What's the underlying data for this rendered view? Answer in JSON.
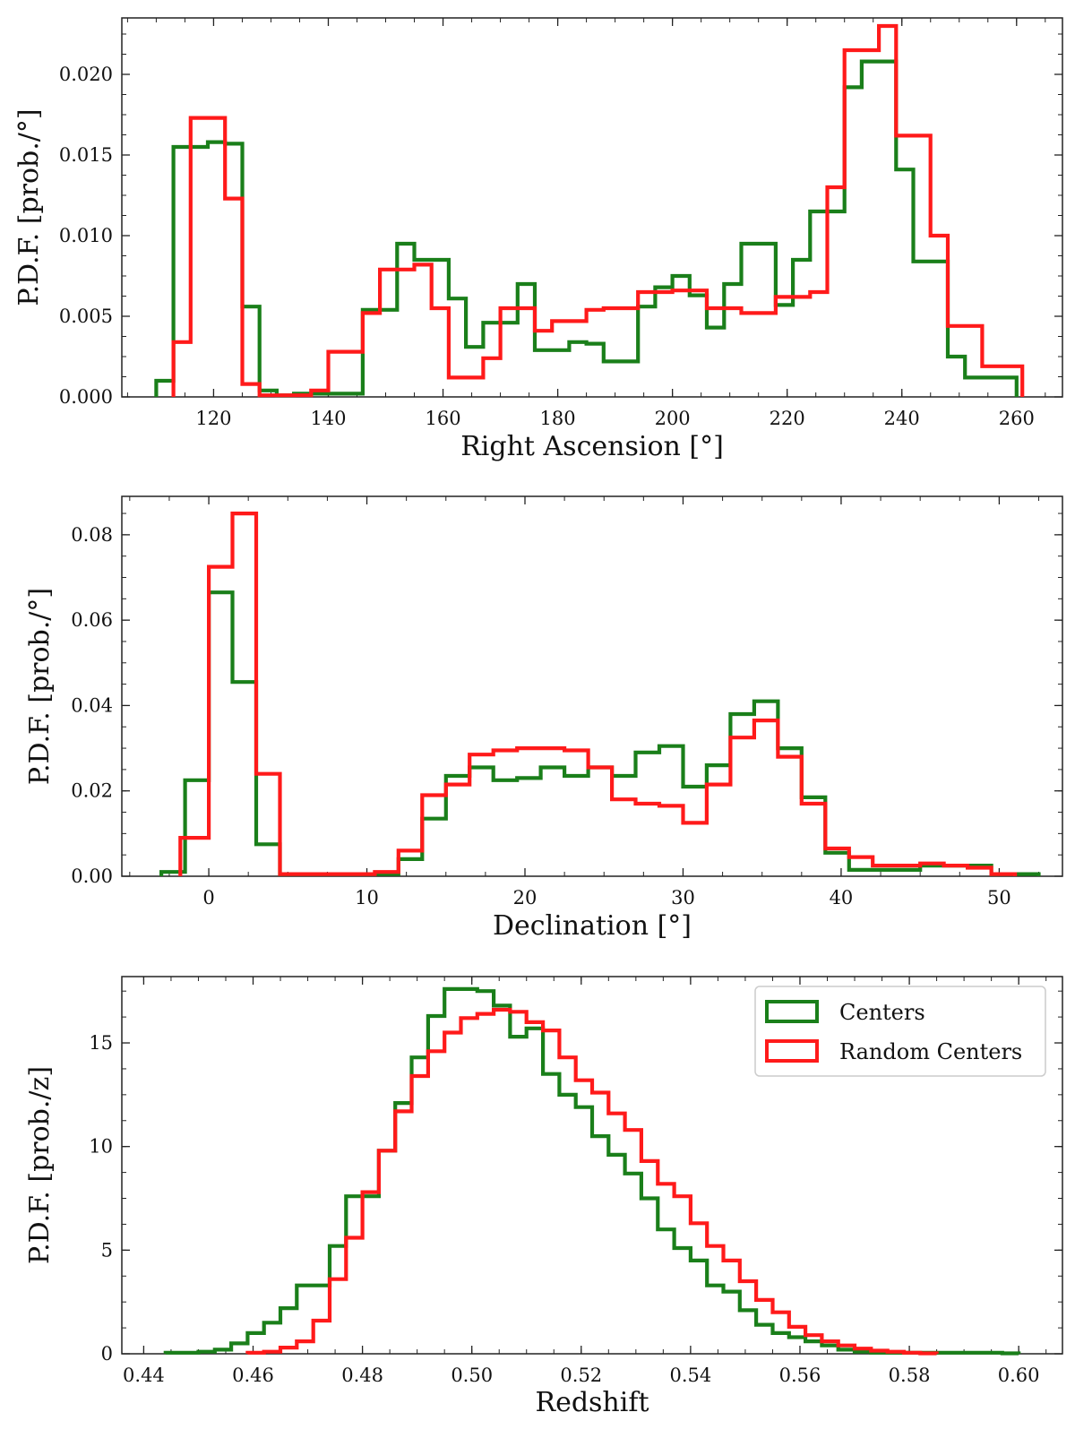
{
  "colors": {
    "centers": "#1a7f1a",
    "random": "#ff1a1a"
  },
  "chart_data": [
    {
      "type": "histogram-step",
      "title": "",
      "xlabel": "Right Ascension [°]",
      "ylabel": "P.D.F. [prob./°]",
      "xlim": [
        104,
        268
      ],
      "ylim": [
        0,
        0.0235
      ],
      "xticks": [
        120,
        140,
        160,
        180,
        200,
        220,
        240,
        260
      ],
      "xtick_labels": [
        "120",
        "140",
        "160",
        "180",
        "200",
        "220",
        "240",
        "260"
      ],
      "yticks": [
        0,
        0.005,
        0.01,
        0.015,
        0.02
      ],
      "ytick_labels": [
        "0.000",
        "0.005",
        "0.010",
        "0.015",
        "0.020"
      ],
      "series": [
        {
          "name": "Centers",
          "edges": [
            110,
            113,
            116,
            119,
            122,
            125,
            128,
            131,
            134,
            137,
            140,
            143,
            146,
            149,
            152,
            155,
            158,
            161,
            164,
            167,
            170,
            173,
            176,
            179,
            182,
            185,
            188,
            191,
            194,
            197,
            200,
            203,
            206,
            209,
            212,
            215,
            218,
            221,
            224,
            227,
            230,
            233,
            236,
            239,
            242,
            245,
            248,
            251,
            254,
            257,
            260
          ],
          "values": [
            0.001,
            0.0155,
            0.0155,
            0.0158,
            0.0157,
            0.0056,
            0.0004,
            0.0001,
            0.0002,
            0.0002,
            0.0002,
            0.0002,
            0.0054,
            0.0054,
            0.0095,
            0.0085,
            0.0085,
            0.0061,
            0.0031,
            0.0046,
            0.0046,
            0.007,
            0.0029,
            0.0029,
            0.0034,
            0.0033,
            0.0022,
            0.0022,
            0.0056,
            0.0068,
            0.0075,
            0.0063,
            0.0043,
            0.007,
            0.0095,
            0.0095,
            0.0057,
            0.0085,
            0.0115,
            0.0115,
            0.0192,
            0.0208,
            0.0208,
            0.0141,
            0.0084,
            0.0084,
            0.0025,
            0.0012,
            0.0012,
            0.0012
          ]
        },
        {
          "name": "Random Centers",
          "edges": [
            113,
            116,
            119,
            122,
            125,
            128,
            131,
            134,
            137,
            140,
            143,
            146,
            149,
            152,
            155,
            158,
            161,
            164,
            167,
            170,
            173,
            176,
            179,
            182,
            185,
            188,
            191,
            194,
            197,
            200,
            203,
            206,
            209,
            212,
            215,
            218,
            221,
            224,
            227,
            230,
            233,
            236,
            239,
            242,
            245,
            248,
            251,
            254,
            257,
            260,
            261
          ],
          "values": [
            0.0034,
            0.0173,
            0.0173,
            0.0123,
            0.0008,
            0.0001,
            0.0001,
            0.0001,
            0.0004,
            0.0028,
            0.0028,
            0.0052,
            0.0079,
            0.0079,
            0.0082,
            0.0055,
            0.0012,
            0.0012,
            0.0024,
            0.0055,
            0.0055,
            0.0041,
            0.0047,
            0.0047,
            0.0054,
            0.0055,
            0.0055,
            0.0065,
            0.0065,
            0.0066,
            0.0066,
            0.0055,
            0.0055,
            0.0052,
            0.0052,
            0.0062,
            0.0062,
            0.0065,
            0.013,
            0.0215,
            0.0215,
            0.023,
            0.0162,
            0.0162,
            0.01,
            0.0044,
            0.0044,
            0.0019,
            0.0019,
            0.0019
          ]
        }
      ]
    },
    {
      "type": "histogram-step",
      "title": "",
      "xlabel": "Declination [°]",
      "ylabel": "P.D.F. [prob./°]",
      "xlim": [
        -5.5,
        54
      ],
      "ylim": [
        0,
        0.089
      ],
      "xticks": [
        0,
        10,
        20,
        30,
        40,
        50
      ],
      "xtick_labels": [
        "0",
        "10",
        "20",
        "30",
        "40",
        "50"
      ],
      "yticks": [
        0,
        0.02,
        0.04,
        0.06,
        0.08
      ],
      "ytick_labels": [
        "0.00",
        "0.02",
        "0.04",
        "0.06",
        "0.08"
      ],
      "series": [
        {
          "name": "Centers",
          "edges": [
            -3.0,
            -1.5,
            0.0,
            1.5,
            3.0,
            4.5,
            6.0,
            7.5,
            9.0,
            10.5,
            12.0,
            13.5,
            15.0,
            16.5,
            18.0,
            19.5,
            21.0,
            22.5,
            24.0,
            25.5,
            27.0,
            28.5,
            30.0,
            31.5,
            33.0,
            34.5,
            36.0,
            37.5,
            39.0,
            40.5,
            42.0,
            43.5,
            45.0,
            46.5,
            48.0,
            49.5,
            51.0,
            52.5
          ],
          "values": [
            0.001,
            0.0225,
            0.0665,
            0.0455,
            0.0075,
            0.0005,
            0.0005,
            0.0005,
            0.0005,
            0.0005,
            0.004,
            0.0135,
            0.0235,
            0.0255,
            0.0225,
            0.023,
            0.0255,
            0.0235,
            0.0255,
            0.0235,
            0.029,
            0.0305,
            0.021,
            0.026,
            0.038,
            0.041,
            0.03,
            0.0185,
            0.0055,
            0.0015,
            0.0015,
            0.0015,
            0.0025,
            0.0025,
            0.0025,
            0.0005,
            0.0005
          ]
        },
        {
          "name": "Random Centers",
          "edges": [
            -1.8,
            0.0,
            1.5,
            3.0,
            4.5,
            6.0,
            7.5,
            9.0,
            10.5,
            12.0,
            13.5,
            15.0,
            16.5,
            18.0,
            19.5,
            21.0,
            22.5,
            24.0,
            25.5,
            27.0,
            28.5,
            30.0,
            31.5,
            33.0,
            34.5,
            36.0,
            37.5,
            39.0,
            40.5,
            42.0,
            43.5,
            45.0,
            46.5,
            48.0,
            49.5,
            51.0
          ],
          "values": [
            0.009,
            0.0725,
            0.085,
            0.024,
            0.0005,
            0.0005,
            0.0005,
            0.0005,
            0.001,
            0.006,
            0.019,
            0.0215,
            0.0285,
            0.0295,
            0.03,
            0.03,
            0.0295,
            0.0255,
            0.018,
            0.017,
            0.0165,
            0.0125,
            0.0215,
            0.0325,
            0.0365,
            0.028,
            0.017,
            0.0065,
            0.0045,
            0.0025,
            0.0025,
            0.003,
            0.0025,
            0.002,
            0.0005
          ]
        }
      ]
    },
    {
      "type": "histogram-step",
      "title": "",
      "xlabel": "Redshift",
      "ylabel": "P.D.F. [prob./z]",
      "xlim": [
        0.436,
        0.608
      ],
      "ylim": [
        0,
        18.2
      ],
      "xticks": [
        0.44,
        0.46,
        0.48,
        0.5,
        0.52,
        0.54,
        0.56,
        0.58,
        0.6
      ],
      "xtick_labels": [
        "0.44",
        "0.46",
        "0.48",
        "0.50",
        "0.52",
        "0.54",
        "0.56",
        "0.58",
        "0.60"
      ],
      "yticks": [
        0,
        5,
        10,
        15
      ],
      "ytick_labels": [
        "0",
        "5",
        "10",
        "15"
      ],
      "legend": {
        "location": "top-right",
        "entries": [
          "Centers",
          "Random Centers"
        ]
      },
      "series": [
        {
          "name": "Centers",
          "edges": [
            0.444,
            0.447,
            0.45,
            0.453,
            0.456,
            0.459,
            0.462,
            0.465,
            0.468,
            0.471,
            0.474,
            0.477,
            0.48,
            0.483,
            0.486,
            0.489,
            0.492,
            0.495,
            0.498,
            0.501,
            0.504,
            0.507,
            0.51,
            0.513,
            0.516,
            0.519,
            0.522,
            0.525,
            0.528,
            0.531,
            0.534,
            0.537,
            0.54,
            0.543,
            0.546,
            0.549,
            0.552,
            0.555,
            0.558,
            0.561,
            0.564,
            0.567,
            0.57,
            0.573,
            0.576,
            0.579,
            0.582,
            0.585,
            0.588,
            0.591,
            0.594,
            0.597,
            0.6
          ],
          "values": [
            0.05,
            0.05,
            0.1,
            0.2,
            0.5,
            1.0,
            1.5,
            2.2,
            3.3,
            3.3,
            5.2,
            7.6,
            7.6,
            9.8,
            12.1,
            14.3,
            16.3,
            17.6,
            17.6,
            17.5,
            16.8,
            15.3,
            15.7,
            13.5,
            12.5,
            11.9,
            10.5,
            9.6,
            8.7,
            7.5,
            6.0,
            5.1,
            4.5,
            3.3,
            3.0,
            2.1,
            1.4,
            1.0,
            0.8,
            0.6,
            0.4,
            0.2,
            0.1,
            0.05,
            0.05,
            0.05,
            0.05,
            0.05,
            0.05,
            0.05,
            0.05,
            0.02
          ]
        },
        {
          "name": "Random Centers",
          "edges": [
            0.459,
            0.462,
            0.465,
            0.468,
            0.471,
            0.474,
            0.477,
            0.48,
            0.483,
            0.486,
            0.489,
            0.492,
            0.495,
            0.498,
            0.501,
            0.504,
            0.507,
            0.51,
            0.513,
            0.516,
            0.519,
            0.522,
            0.525,
            0.528,
            0.531,
            0.534,
            0.537,
            0.54,
            0.543,
            0.546,
            0.549,
            0.552,
            0.555,
            0.558,
            0.561,
            0.564,
            0.567,
            0.57,
            0.573,
            0.576,
            0.579,
            0.582,
            0.585
          ],
          "values": [
            0.05,
            0.1,
            0.3,
            0.6,
            1.6,
            3.6,
            5.6,
            7.8,
            9.8,
            11.7,
            13.4,
            14.6,
            15.5,
            16.2,
            16.4,
            16.6,
            16.5,
            16.0,
            15.6,
            14.3,
            13.2,
            12.6,
            11.6,
            10.8,
            9.3,
            8.2,
            7.6,
            6.3,
            5.2,
            4.5,
            3.5,
            2.6,
            2.0,
            1.3,
            0.9,
            0.6,
            0.4,
            0.25,
            0.15,
            0.1,
            0.05,
            0.02
          ]
        }
      ]
    }
  ]
}
